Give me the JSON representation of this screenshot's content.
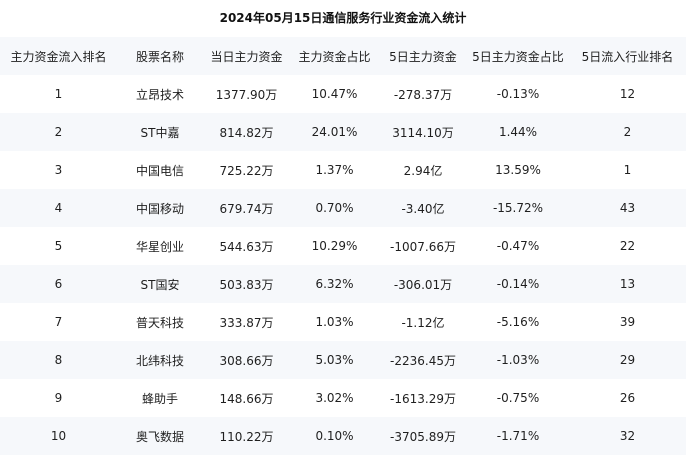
{
  "title": "2024年05月15日通信服务行业资金流入统计",
  "table": {
    "headers": [
      "主力资金流入排名",
      "股票名称",
      "当日主力资金",
      "主力资金占比",
      "5日主力资金",
      "5日主力资金占比",
      "5日流入行业排名"
    ],
    "rows": [
      [
        "1",
        "立昂技术",
        "1377.90万",
        "10.47%",
        "-278.37万",
        "-0.13%",
        "12"
      ],
      [
        "2",
        "ST中嘉",
        "814.82万",
        "24.01%",
        "3114.10万",
        "1.44%",
        "2"
      ],
      [
        "3",
        "中国电信",
        "725.22万",
        "1.37%",
        "2.94亿",
        "13.59%",
        "1"
      ],
      [
        "4",
        "中国移动",
        "679.74万",
        "0.70%",
        "-3.40亿",
        "-15.72%",
        "43"
      ],
      [
        "5",
        "华星创业",
        "544.63万",
        "10.29%",
        "-1007.66万",
        "-0.47%",
        "22"
      ],
      [
        "6",
        "ST国安",
        "503.83万",
        "6.32%",
        "-306.01万",
        "-0.14%",
        "13"
      ],
      [
        "7",
        "普天科技",
        "333.87万",
        "1.03%",
        "-1.12亿",
        "-5.16%",
        "39"
      ],
      [
        "8",
        "北纬科技",
        "308.66万",
        "5.03%",
        "-2236.45万",
        "-1.03%",
        "29"
      ],
      [
        "9",
        "蜂助手",
        "148.66万",
        "3.02%",
        "-1613.29万",
        "-0.75%",
        "26"
      ],
      [
        "10",
        "奥飞数据",
        "110.22万",
        "0.10%",
        "-3705.89万",
        "-1.71%",
        "32"
      ]
    ]
  }
}
